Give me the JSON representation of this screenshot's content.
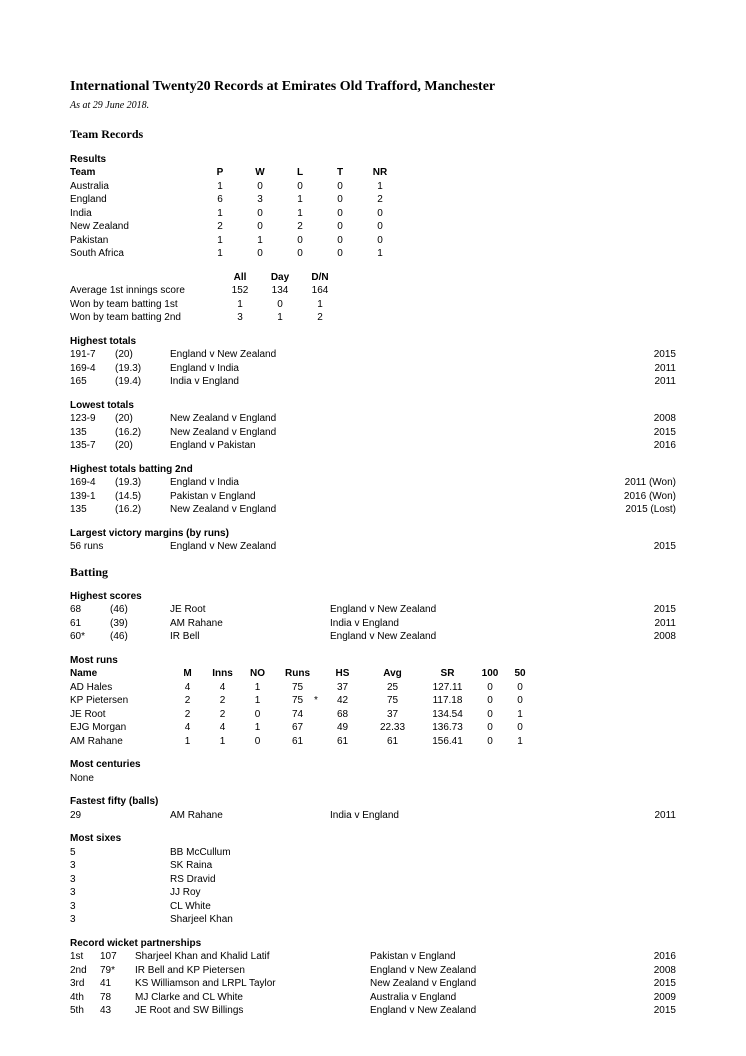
{
  "title": "International Twenty20 Records at Emirates Old Trafford, Manchester",
  "asof": "As at 29 June 2018.",
  "sections": {
    "team_records": "Team Records",
    "batting": "Batting"
  },
  "results": {
    "heading": "Results",
    "cols": [
      "Team",
      "P",
      "W",
      "L",
      "T",
      "NR"
    ],
    "rows": [
      {
        "team": "Australia",
        "p": "1",
        "w": "0",
        "l": "0",
        "t": "0",
        "nr": "1"
      },
      {
        "team": "England",
        "p": "6",
        "w": "3",
        "l": "1",
        "t": "0",
        "nr": "2"
      },
      {
        "team": "India",
        "p": "1",
        "w": "0",
        "l": "1",
        "t": "0",
        "nr": "0"
      },
      {
        "team": "New Zealand",
        "p": "2",
        "w": "0",
        "l": "2",
        "t": "0",
        "nr": "0"
      },
      {
        "team": "Pakistan",
        "p": "1",
        "w": "1",
        "l": "0",
        "t": "0",
        "nr": "0"
      },
      {
        "team": "South Africa",
        "p": "1",
        "w": "0",
        "l": "0",
        "t": "0",
        "nr": "1"
      }
    ]
  },
  "innings_summary": {
    "cols": [
      "All",
      "Day",
      "D/N"
    ],
    "rows": [
      {
        "label": "Average 1st innings score",
        "all": "152",
        "day": "134",
        "dn": "164"
      },
      {
        "label": "Won by team batting 1st",
        "all": "1",
        "day": "0",
        "dn": "1"
      },
      {
        "label": "Won by team batting 2nd",
        "all": "3",
        "day": "1",
        "dn": "2"
      }
    ]
  },
  "highest_totals": {
    "heading": "Highest totals",
    "rows": [
      {
        "score": "191-7",
        "overs": "(20)",
        "match": "England v New Zealand",
        "year": "2015"
      },
      {
        "score": "169-4",
        "overs": "(19.3)",
        "match": "England v India",
        "year": "2011"
      },
      {
        "score": "165",
        "overs": "(19.4)",
        "match": "India v England",
        "year": "2011"
      }
    ]
  },
  "lowest_totals": {
    "heading": "Lowest totals",
    "rows": [
      {
        "score": "123-9",
        "overs": "(20)",
        "match": "New Zealand v England",
        "year": "2008"
      },
      {
        "score": "135",
        "overs": "(16.2)",
        "match": "New Zealand v England",
        "year": "2015"
      },
      {
        "score": "135-7",
        "overs": "(20)",
        "match": "England v Pakistan",
        "year": "2016"
      }
    ]
  },
  "highest_batting_2nd": {
    "heading": "Highest totals batting 2nd",
    "rows": [
      {
        "score": "169-4",
        "overs": "(19.3)",
        "match": "England v India",
        "year": "2011 (Won)"
      },
      {
        "score": "139-1",
        "overs": "(14.5)",
        "match": "Pakistan v England",
        "year": "2016 (Won)"
      },
      {
        "score": "135",
        "overs": "(16.2)",
        "match": "New Zealand v England",
        "year": "2015 (Lost)"
      }
    ]
  },
  "largest_victory": {
    "heading": "Largest victory margins (by runs)",
    "rows": [
      {
        "score": "56 runs",
        "overs": "",
        "match": "England v New Zealand",
        "year": "2015"
      }
    ]
  },
  "highest_scores": {
    "heading": "Highest scores",
    "rows": [
      {
        "runs": "68",
        "balls": "(46)",
        "name": "JE Root",
        "match": "England v New Zealand",
        "year": "2015"
      },
      {
        "runs": "61",
        "balls": "(39)",
        "name": "AM Rahane",
        "match": "India v England",
        "year": "2011"
      },
      {
        "runs": "60*",
        "balls": "(46)",
        "name": "IR Bell",
        "match": "England v New Zealand",
        "year": "2008"
      }
    ]
  },
  "most_runs": {
    "heading": "Most runs",
    "cols": [
      "Name",
      "M",
      "Inns",
      "NO",
      "Runs",
      "HS",
      "Avg",
      "SR",
      "100",
      "50"
    ],
    "rows": [
      {
        "name": "AD Hales",
        "m": "4",
        "inns": "4",
        "no": "1",
        "runs": "75",
        "hs": "37",
        "star": "",
        "avg": "25",
        "sr": "127.11",
        "c100": "0",
        "c50": "0"
      },
      {
        "name": "KP Pietersen",
        "m": "2",
        "inns": "2",
        "no": "1",
        "runs": "75",
        "hs": "42",
        "star": "*",
        "avg": "75",
        "sr": "117.18",
        "c100": "0",
        "c50": "0"
      },
      {
        "name": "JE Root",
        "m": "2",
        "inns": "2",
        "no": "0",
        "runs": "74",
        "hs": "68",
        "star": "",
        "avg": "37",
        "sr": "134.54",
        "c100": "0",
        "c50": "1"
      },
      {
        "name": "EJG Morgan",
        "m": "4",
        "inns": "4",
        "no": "1",
        "runs": "67",
        "hs": "49",
        "star": "",
        "avg": "22.33",
        "sr": "136.73",
        "c100": "0",
        "c50": "0"
      },
      {
        "name": "AM Rahane",
        "m": "1",
        "inns": "1",
        "no": "0",
        "runs": "61",
        "hs": "61",
        "star": "",
        "avg": "61",
        "sr": "156.41",
        "c100": "0",
        "c50": "1"
      }
    ]
  },
  "most_centuries": {
    "heading": "Most centuries",
    "value": "None"
  },
  "fastest_fifty": {
    "heading": "Fastest fifty (balls)",
    "rows": [
      {
        "balls": "29",
        "name": "AM Rahane",
        "match": "India v England",
        "year": "2011"
      }
    ]
  },
  "most_sixes": {
    "heading": "Most sixes",
    "rows": [
      {
        "n": "5",
        "name": "BB McCullum"
      },
      {
        "n": "3",
        "name": "SK Raina"
      },
      {
        "n": "3",
        "name": "RS Dravid"
      },
      {
        "n": "3",
        "name": "JJ Roy"
      },
      {
        "n": "3",
        "name": "CL White"
      },
      {
        "n": "3",
        "name": "Sharjeel Khan"
      }
    ]
  },
  "partnerships": {
    "heading": "Record wicket partnerships",
    "rows": [
      {
        "wkt": "1st",
        "runs": "107",
        "pair": "Sharjeel Khan and Khalid Latif",
        "match": "Pakistan v England",
        "year": "2016"
      },
      {
        "wkt": "2nd",
        "runs": "79*",
        "pair": "IR Bell and KP Pietersen",
        "match": "England v New Zealand",
        "year": "2008"
      },
      {
        "wkt": "3rd",
        "runs": "41",
        "pair": "KS Williamson and LRPL Taylor",
        "match": "New Zealand v England",
        "year": "2015"
      },
      {
        "wkt": "4th",
        "runs": "78",
        "pair": "MJ Clarke and CL White",
        "match": "Australia v England",
        "year": "2009"
      },
      {
        "wkt": "5th",
        "runs": "43",
        "pair": "JE Root and SW Billings",
        "match": "England v New Zealand",
        "year": "2015"
      }
    ]
  }
}
